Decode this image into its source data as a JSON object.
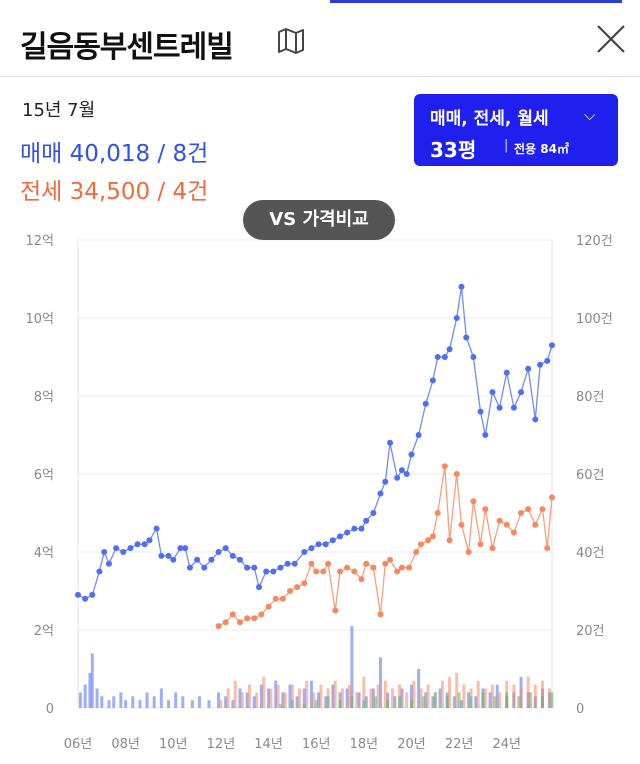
{
  "header": {
    "title": "길음동부센트레빌"
  },
  "summary": {
    "date": "15년 7월",
    "sale_text": "매매 40,018 / 8건",
    "jeonse_text": "전세 34,500 / 4건"
  },
  "filter": {
    "types": "매매, 전세, 월세",
    "size": "33평",
    "separator": "|",
    "area": "전용 84㎡"
  },
  "compare_button": "VS 가격비교",
  "colors": {
    "sale": "#4f6ef5",
    "jeonse": "#f7875d",
    "monthly": "#5cb85c",
    "accent": "#1f1fee"
  },
  "chart_data": {
    "type": "line",
    "x_ticks": [
      "06년",
      "08년",
      "10년",
      "12년",
      "14년",
      "16년",
      "18년",
      "20년",
      "22년",
      "24년"
    ],
    "y_left_ticks": [
      "0",
      "2억",
      "4억",
      "6억",
      "8억",
      "10억",
      "12억"
    ],
    "y_right_ticks": [
      "0",
      "20건",
      "40건",
      "60건",
      "80건",
      "100건",
      "120건"
    ],
    "y_left_range": [
      0,
      12
    ],
    "y_right_range": [
      0,
      120
    ],
    "x_range": [
      2006,
      2025.9
    ],
    "grid": "horizontal",
    "series": [
      {
        "kind": "price",
        "points": [
          [
            2006.0,
            2.9
          ],
          [
            2006.3,
            2.8
          ],
          [
            2006.6,
            2.9
          ],
          [
            2006.9,
            3.5
          ],
          [
            2007.1,
            4.0
          ],
          [
            2007.3,
            3.7
          ],
          [
            2007.6,
            4.1
          ],
          [
            2007.9,
            4.0
          ],
          [
            2008.2,
            4.1
          ],
          [
            2008.5,
            4.2
          ],
          [
            2008.8,
            4.2
          ],
          [
            2009.0,
            4.3
          ],
          [
            2009.3,
            4.6
          ],
          [
            2009.5,
            3.9
          ],
          [
            2009.8,
            3.9
          ],
          [
            2010.0,
            3.8
          ],
          [
            2010.3,
            4.1
          ],
          [
            2010.5,
            4.1
          ],
          [
            2010.7,
            3.6
          ],
          [
            2011.0,
            3.8
          ],
          [
            2011.3,
            3.6
          ],
          [
            2011.6,
            3.8
          ],
          [
            2011.9,
            4.0
          ],
          [
            2012.2,
            4.1
          ],
          [
            2012.5,
            3.9
          ],
          [
            2012.8,
            3.8
          ],
          [
            2013.1,
            3.6
          ],
          [
            2013.4,
            3.6
          ],
          [
            2013.6,
            3.1
          ],
          [
            2013.9,
            3.5
          ],
          [
            2014.2,
            3.5
          ],
          [
            2014.5,
            3.6
          ],
          [
            2014.8,
            3.7
          ],
          [
            2015.1,
            3.7
          ],
          [
            2015.5,
            4.0
          ],
          [
            2015.8,
            4.1
          ],
          [
            2016.1,
            4.2
          ],
          [
            2016.4,
            4.2
          ],
          [
            2016.7,
            4.3
          ],
          [
            2017.0,
            4.4
          ],
          [
            2017.3,
            4.5
          ],
          [
            2017.6,
            4.6
          ],
          [
            2017.9,
            4.6
          ],
          [
            2018.1,
            4.8
          ],
          [
            2018.4,
            5.0
          ],
          [
            2018.7,
            5.5
          ],
          [
            2018.9,
            5.8
          ],
          [
            2019.1,
            6.8
          ],
          [
            2019.4,
            5.9
          ],
          [
            2019.6,
            6.1
          ],
          [
            2019.8,
            6.0
          ],
          [
            2020.0,
            6.5
          ],
          [
            2020.3,
            7.0
          ],
          [
            2020.6,
            7.8
          ],
          [
            2020.9,
            8.4
          ],
          [
            2021.1,
            9.0
          ],
          [
            2021.4,
            9.0
          ],
          [
            2021.6,
            9.2
          ],
          [
            2021.9,
            10.0
          ],
          [
            2022.1,
            10.8
          ],
          [
            2022.3,
            9.5
          ],
          [
            2022.6,
            9.0
          ],
          [
            2022.9,
            7.6
          ],
          [
            2023.1,
            7.0
          ],
          [
            2023.4,
            8.1
          ],
          [
            2023.7,
            7.7
          ],
          [
            2024.0,
            8.6
          ],
          [
            2024.3,
            7.7
          ],
          [
            2024.6,
            8.1
          ],
          [
            2024.9,
            8.7
          ],
          [
            2025.2,
            7.4
          ],
          [
            2025.4,
            8.8
          ],
          [
            2025.7,
            8.9
          ],
          [
            2025.9,
            9.3
          ]
        ]
      },
      {
        "kind": "price",
        "points": [
          [
            2011.9,
            2.1
          ],
          [
            2012.2,
            2.2
          ],
          [
            2012.5,
            2.4
          ],
          [
            2012.8,
            2.2
          ],
          [
            2013.1,
            2.3
          ],
          [
            2013.4,
            2.3
          ],
          [
            2013.7,
            2.4
          ],
          [
            2014.0,
            2.6
          ],
          [
            2014.3,
            2.8
          ],
          [
            2014.6,
            2.8
          ],
          [
            2014.9,
            3.0
          ],
          [
            2015.2,
            3.1
          ],
          [
            2015.5,
            3.2
          ],
          [
            2015.8,
            3.7
          ],
          [
            2016.0,
            3.5
          ],
          [
            2016.3,
            3.5
          ],
          [
            2016.5,
            3.7
          ],
          [
            2016.8,
            2.5
          ],
          [
            2017.0,
            3.5
          ],
          [
            2017.3,
            3.6
          ],
          [
            2017.6,
            3.5
          ],
          [
            2017.9,
            3.3
          ],
          [
            2018.1,
            3.7
          ],
          [
            2018.4,
            3.6
          ],
          [
            2018.7,
            2.4
          ],
          [
            2018.9,
            3.7
          ],
          [
            2019.1,
            3.8
          ],
          [
            2019.4,
            3.5
          ],
          [
            2019.6,
            3.6
          ],
          [
            2019.9,
            3.6
          ],
          [
            2020.2,
            4.0
          ],
          [
            2020.4,
            4.2
          ],
          [
            2020.7,
            4.3
          ],
          [
            2020.9,
            4.4
          ],
          [
            2021.1,
            5.0
          ],
          [
            2021.4,
            6.2
          ],
          [
            2021.6,
            4.3
          ],
          [
            2021.9,
            6.0
          ],
          [
            2022.1,
            4.7
          ],
          [
            2022.4,
            4.0
          ],
          [
            2022.6,
            5.3
          ],
          [
            2022.9,
            4.2
          ],
          [
            2023.1,
            5.1
          ],
          [
            2023.4,
            4.1
          ],
          [
            2023.7,
            4.8
          ],
          [
            2024.0,
            4.7
          ],
          [
            2024.3,
            4.5
          ],
          [
            2024.6,
            5.0
          ],
          [
            2024.9,
            5.1
          ],
          [
            2025.2,
            4.7
          ],
          [
            2025.5,
            5.1
          ],
          [
            2025.7,
            4.1
          ],
          [
            2025.9,
            5.4
          ]
        ]
      },
      {
        "kind": "volume",
        "points": [
          [
            2006.1,
            4
          ],
          [
            2006.3,
            6
          ],
          [
            2006.5,
            9
          ],
          [
            2006.6,
            14
          ],
          [
            2006.8,
            5
          ],
          [
            2007.0,
            3
          ],
          [
            2007.3,
            2
          ],
          [
            2007.5,
            3
          ],
          [
            2007.8,
            4
          ],
          [
            2008.0,
            2
          ],
          [
            2008.3,
            3
          ],
          [
            2008.6,
            2
          ],
          [
            2008.9,
            4
          ],
          [
            2009.2,
            3
          ],
          [
            2009.5,
            5
          ],
          [
            2009.8,
            2
          ],
          [
            2010.1,
            4
          ],
          [
            2010.4,
            3
          ],
          [
            2010.8,
            2
          ],
          [
            2011.1,
            3
          ],
          [
            2011.5,
            2
          ],
          [
            2011.9,
            4
          ],
          [
            2012.2,
            3
          ],
          [
            2012.5,
            2
          ],
          [
            2012.8,
            5
          ],
          [
            2013.1,
            4
          ],
          [
            2013.4,
            3
          ],
          [
            2013.7,
            6
          ],
          [
            2014.0,
            5
          ],
          [
            2014.3,
            7
          ],
          [
            2014.6,
            4
          ],
          [
            2014.9,
            6
          ],
          [
            2015.2,
            3
          ],
          [
            2015.5,
            5
          ],
          [
            2015.8,
            7
          ],
          [
            2016.1,
            4
          ],
          [
            2016.4,
            3
          ],
          [
            2016.7,
            6
          ],
          [
            2017.0,
            4
          ],
          [
            2017.3,
            5
          ],
          [
            2017.5,
            21
          ],
          [
            2017.8,
            4
          ],
          [
            2018.1,
            3
          ],
          [
            2018.4,
            5
          ],
          [
            2018.7,
            13
          ],
          [
            2019.0,
            4
          ],
          [
            2019.3,
            3
          ],
          [
            2019.6,
            5
          ],
          [
            2020.0,
            6
          ],
          [
            2020.3,
            10
          ],
          [
            2020.6,
            4
          ],
          [
            2020.9,
            3
          ],
          [
            2021.2,
            5
          ],
          [
            2021.5,
            4
          ],
          [
            2021.8,
            3
          ],
          [
            2022.1,
            2
          ],
          [
            2022.4,
            4
          ],
          [
            2022.7,
            3
          ],
          [
            2023.0,
            5
          ],
          [
            2023.3,
            4
          ],
          [
            2023.6,
            6
          ],
          [
            2024.0,
            3
          ],
          [
            2024.3,
            4
          ],
          [
            2024.6,
            8
          ],
          [
            2024.9,
            4
          ],
          [
            2025.2,
            3
          ],
          [
            2025.5,
            5
          ],
          [
            2025.8,
            4
          ]
        ]
      },
      {
        "kind": "volume",
        "points": [
          [
            2012.0,
            2
          ],
          [
            2012.3,
            5
          ],
          [
            2012.6,
            7
          ],
          [
            2012.9,
            4
          ],
          [
            2013.2,
            6
          ],
          [
            2013.5,
            4
          ],
          [
            2013.8,
            8
          ],
          [
            2014.1,
            5
          ],
          [
            2014.4,
            6
          ],
          [
            2014.7,
            4
          ],
          [
            2015.0,
            6
          ],
          [
            2015.3,
            5
          ],
          [
            2015.6,
            7
          ],
          [
            2015.9,
            4
          ],
          [
            2016.2,
            6
          ],
          [
            2016.5,
            5
          ],
          [
            2016.8,
            7
          ],
          [
            2017.1,
            5
          ],
          [
            2017.4,
            6
          ],
          [
            2017.7,
            4
          ],
          [
            2018.0,
            8
          ],
          [
            2018.3,
            5
          ],
          [
            2018.6,
            6
          ],
          [
            2018.9,
            7
          ],
          [
            2019.2,
            5
          ],
          [
            2019.5,
            6
          ],
          [
            2019.8,
            4
          ],
          [
            2020.1,
            7
          ],
          [
            2020.4,
            5
          ],
          [
            2020.7,
            6
          ],
          [
            2021.0,
            4
          ],
          [
            2021.3,
            7
          ],
          [
            2021.6,
            8
          ],
          [
            2021.9,
            9
          ],
          [
            2022.2,
            6
          ],
          [
            2022.5,
            5
          ],
          [
            2022.8,
            7
          ],
          [
            2023.1,
            5
          ],
          [
            2023.4,
            6
          ],
          [
            2023.7,
            4
          ],
          [
            2024.0,
            7
          ],
          [
            2024.3,
            6
          ],
          [
            2024.6,
            5
          ],
          [
            2024.9,
            8
          ],
          [
            2025.2,
            6
          ],
          [
            2025.5,
            7
          ],
          [
            2025.8,
            5
          ]
        ]
      },
      {
        "kind": "volume",
        "points": [
          [
            2014.5,
            1
          ],
          [
            2015.0,
            2
          ],
          [
            2015.5,
            1
          ],
          [
            2016.0,
            2
          ],
          [
            2016.5,
            3
          ],
          [
            2017.0,
            2
          ],
          [
            2017.5,
            3
          ],
          [
            2018.0,
            2
          ],
          [
            2018.5,
            3
          ],
          [
            2019.0,
            2
          ],
          [
            2019.5,
            3
          ],
          [
            2020.0,
            2
          ],
          [
            2020.5,
            3
          ],
          [
            2021.0,
            4
          ],
          [
            2021.5,
            3
          ],
          [
            2022.0,
            4
          ],
          [
            2022.5,
            3
          ],
          [
            2023.0,
            4
          ],
          [
            2023.5,
            3
          ],
          [
            2024.0,
            4
          ],
          [
            2024.5,
            3
          ],
          [
            2025.0,
            4
          ],
          [
            2025.5,
            3
          ],
          [
            2025.9,
            4
          ]
        ]
      }
    ]
  }
}
